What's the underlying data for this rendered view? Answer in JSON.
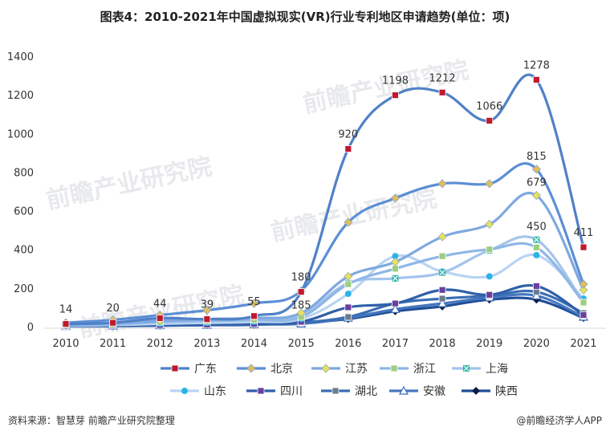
{
  "title": "图表4：2010-2021年中国虚拟现实(VR)行业专利地区申请趋势(单位：项)",
  "source": "资料来源：智慧芽 前瞻产业研究院整理",
  "brand": "@前瞻经济学人APP",
  "watermark": "前瞻产业研究院",
  "chart_data": {
    "type": "line",
    "title": "图表4：2010-2021年中国虚拟现实(VR)行业专利地区申请趋势(单位：项)",
    "xlabel": "",
    "ylabel": "",
    "x": [
      "2010",
      "2011",
      "2012",
      "2013",
      "2014",
      "2015",
      "2016",
      "2017",
      "2018",
      "2019",
      "2020",
      "2021"
    ],
    "yticks": [
      0,
      200,
      400,
      600,
      800,
      1000,
      1200,
      1400
    ],
    "ylim": [
      0,
      1400
    ],
    "grid": false,
    "legend_position": "bottom",
    "series": [
      {
        "name": "广东",
        "color": "#4f81c7",
        "marker": "square-red",
        "values": [
          14,
          20,
          44,
          39,
          55,
          180,
          920,
          1198,
          1212,
          1066,
          1278,
          411
        ]
      },
      {
        "name": "北京",
        "color": "#5b8ed6",
        "marker": "diamond",
        "values": [
          20,
          35,
          60,
          85,
          120,
          185,
          540,
          665,
          740,
          740,
          815,
          220
        ]
      },
      {
        "name": "江苏",
        "color": "#7fa8e0",
        "marker": "diamond-yellow",
        "values": [
          10,
          18,
          30,
          40,
          45,
          70,
          260,
          335,
          465,
          530,
          679,
          190
        ]
      },
      {
        "name": "浙江",
        "color": "#8fb6e6",
        "marker": "square-green",
        "values": [
          8,
          12,
          25,
          30,
          35,
          50,
          220,
          300,
          365,
          400,
          410,
          125
        ]
      },
      {
        "name": "上海",
        "color": "#a4c4ec",
        "marker": "x-teal",
        "values": [
          8,
          14,
          28,
          32,
          40,
          60,
          225,
          250,
          280,
          395,
          450,
          125
        ]
      },
      {
        "name": "山东",
        "color": "#b8d4f2",
        "marker": "circle-cyan",
        "values": [
          5,
          8,
          15,
          20,
          25,
          40,
          170,
          365,
          285,
          260,
          370,
          145
        ]
      },
      {
        "name": "四川",
        "color": "#2f5fa8",
        "marker": "square-purple",
        "values": [
          3,
          5,
          8,
          10,
          15,
          25,
          100,
          120,
          190,
          165,
          210,
          60
        ]
      },
      {
        "name": "湖北",
        "color": "#3a6db5",
        "marker": "square-gray",
        "values": [
          3,
          6,
          10,
          12,
          18,
          22,
          50,
          120,
          145,
          160,
          180,
          70
        ]
      },
      {
        "name": "安徽",
        "color": "#4577bf",
        "marker": "triangle",
        "values": [
          2,
          4,
          6,
          8,
          12,
          15,
          45,
          90,
          120,
          150,
          160,
          50
        ]
      },
      {
        "name": "陕西",
        "color": "#1f4e96",
        "marker": "diamond-navy",
        "values": [
          2,
          3,
          5,
          8,
          10,
          20,
          40,
          80,
          105,
          140,
          140,
          45
        ]
      }
    ],
    "data_labels": {
      "series": "广东",
      "labels": [
        {
          "x": "2010",
          "text": "14"
        },
        {
          "x": "2011",
          "text": "20"
        },
        {
          "x": "2012",
          "text": "44"
        },
        {
          "x": "2013",
          "text": "39"
        },
        {
          "x": "2014",
          "text": "55"
        },
        {
          "x": "2015",
          "text": "180"
        },
        {
          "x": "2016",
          "text": "920"
        },
        {
          "x": "2017",
          "text": "1198"
        },
        {
          "x": "2018",
          "text": "1212"
        },
        {
          "x": "2019",
          "text": "1066"
        },
        {
          "x": "2020",
          "text": "1278"
        },
        {
          "x": "2021",
          "text": "411"
        }
      ],
      "extra": [
        {
          "series": "北京",
          "x": "2015",
          "text": "185"
        },
        {
          "series": "北京",
          "x": "2020",
          "text": "815"
        },
        {
          "series": "江苏",
          "x": "2020",
          "text": "679"
        },
        {
          "series": "上海",
          "x": "2020",
          "text": "450"
        }
      ]
    }
  }
}
